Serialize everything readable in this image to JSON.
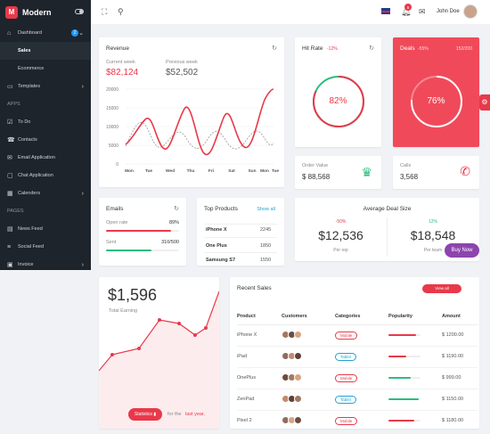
{
  "brand": {
    "name": "Modern",
    "logo_letter": "M"
  },
  "sidebar": {
    "dashboard": {
      "label": "Dashboard",
      "badge": "2"
    },
    "dashboard_children": [
      "Sales",
      "Ecommerce"
    ],
    "templates": "Templates",
    "apps_heading": "APPS",
    "apps": [
      "To Do",
      "Contacts",
      "Email Application",
      "Chat Application",
      "Calenders"
    ],
    "pages_heading": "PAGES",
    "pages": [
      "News Feed",
      "Social Feed",
      "Invoice"
    ]
  },
  "topbar": {
    "notifications": "5",
    "user": "John Doe"
  },
  "revenue": {
    "title": "Revenue",
    "current_label": "Current week",
    "current_value": "$82,124",
    "previous_label": "Previous week",
    "previous_value": "$52,502",
    "y_ticks": [
      "20000",
      "15000",
      "10000",
      "5000",
      "0"
    ],
    "x_ticks": [
      "Mon",
      "Tue",
      "Wed",
      "Thu",
      "Fri",
      "Sat",
      "Sun",
      "Mon",
      "Tue"
    ]
  },
  "hit_rate": {
    "title": "Hit Rate",
    "change": "-12%",
    "value": "82%",
    "fraction": 0.82
  },
  "deals": {
    "title": "Deals",
    "change": "-55%",
    "count": "152/200",
    "value": "76%",
    "fraction": 0.76
  },
  "order_value": {
    "label": "Order Value",
    "value": "$ 88,568"
  },
  "calls": {
    "label": "Calls",
    "value": "3,568"
  },
  "emails": {
    "title": "Emails",
    "open_label": "Open rate",
    "open_value": "89%",
    "open_fraction": 0.89,
    "sent_label": "Sent",
    "sent_value": "310/500",
    "sent_fraction": 0.62
  },
  "top_products": {
    "title": "Top Products",
    "show_all": "Show all",
    "rows": [
      [
        "iPhone X",
        "2245"
      ],
      [
        "One Plus",
        "1850"
      ],
      [
        "Samsung S7",
        "1550"
      ]
    ]
  },
  "avg_deal": {
    "title": "Average Deal Size",
    "left_change": "-50%",
    "left_value": "$12,536",
    "left_label": "Per rep",
    "right_change": "12%",
    "right_value": "$18,548",
    "right_label": "Per team",
    "buy_now": "Buy Now"
  },
  "earning": {
    "value": "$1,596",
    "label": "Total Earning",
    "button": "Statistics",
    "note_prefix": "for the",
    "note_link": "last year."
  },
  "recent_sales": {
    "title": "Recent Sales",
    "view_all": "View all",
    "headers": [
      "Product",
      "Customers",
      "Categories",
      "Popularity",
      "Amount"
    ],
    "rows": [
      [
        "iPhone X",
        "Mobile",
        "$ 1200.00"
      ],
      [
        "iPad",
        "Tablet",
        "$ 1190.00"
      ],
      [
        "OnePlus",
        "Mobile",
        "$ 999.00"
      ],
      [
        "ZenPad",
        "Tablet",
        "$ 1150.00"
      ],
      [
        "Pixel 2",
        "Mobile",
        "$ 1180.00"
      ]
    ],
    "popularity": [
      0.85,
      0.55,
      0.7,
      0.95,
      0.8
    ]
  },
  "colors": {
    "accent": "#e8394a",
    "green": "#2bbd7e",
    "blue": "#21a4d4",
    "purple": "#8e44ad"
  }
}
